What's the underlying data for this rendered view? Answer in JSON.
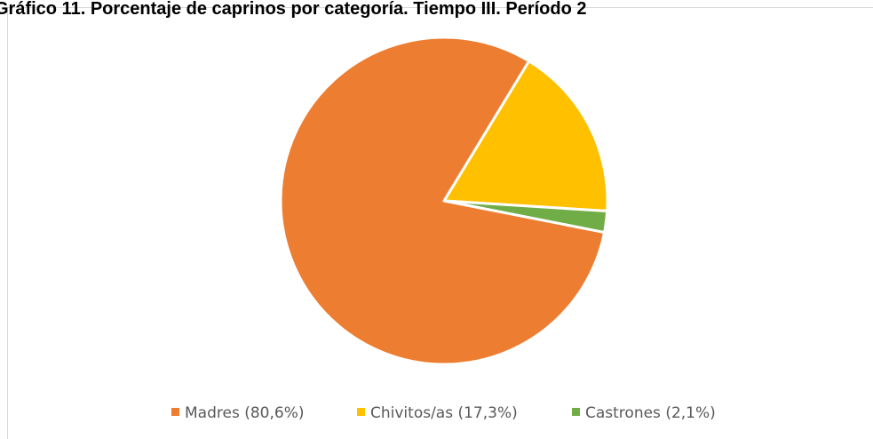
{
  "chart_data": {
    "type": "pie",
    "title": "Gráfico 11. Porcentaje de caprinos por categoría. Tiempo III. Período 2",
    "categories": [
      "Madres (80,6%)",
      "Chivitos/as (17,3%)",
      "Castrones (2,1%)"
    ],
    "values": [
      80.6,
      17.3,
      2.1
    ],
    "colors": [
      "#ED7D31",
      "#FFC000",
      "#70AD47"
    ],
    "legend": "bottom"
  }
}
